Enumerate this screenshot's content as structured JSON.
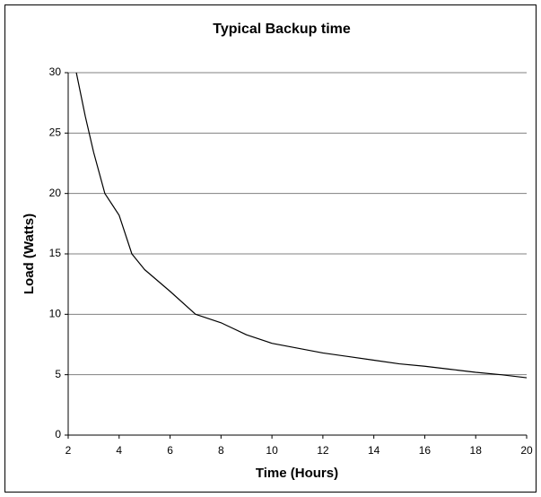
{
  "chart_data": {
    "type": "line",
    "title": "Typical Backup time",
    "x_label": "Time (Hours)",
    "y_label": "Load (Watts)",
    "series": [
      {
        "name": "Load",
        "color": "#000000",
        "x": [
          2.32,
          2.67,
          3,
          3.44,
          4,
          4.5,
          5,
          6,
          7,
          8,
          9,
          10,
          11,
          12,
          13,
          14,
          15,
          16,
          17,
          18,
          19,
          20
        ],
        "values": [
          30,
          26.4,
          23.4,
          20,
          18.2,
          15,
          13.7,
          11.9,
          10,
          9.3,
          8.3,
          7.6,
          7.2,
          6.8,
          6.5,
          6.2,
          5.9,
          5.7,
          5.45,
          5.2,
          5,
          4.75
        ]
      }
    ],
    "xlim": [
      2,
      20
    ],
    "xticks": [
      2,
      4,
      6,
      8,
      10,
      12,
      14,
      16,
      18,
      20
    ],
    "ylim": [
      0,
      30
    ],
    "yticks": [
      0,
      5,
      10,
      15,
      20,
      25,
      30
    ],
    "grid": true
  }
}
